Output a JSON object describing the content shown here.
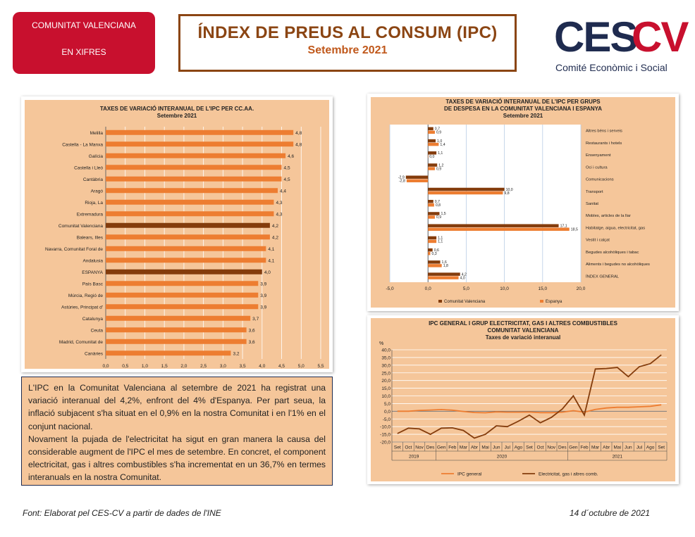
{
  "header": {
    "badge_line1": "COMUNITAT VALENCIANA",
    "badge_line2": "EN XIFRES",
    "title": "ÍNDEX DE PREUS AL CONSUM (IPC)",
    "subtitle": "Setembre 2021",
    "logo_ces": "CES",
    "logo_cv": "CV",
    "logo_sub": "Comité Econòmic i Social"
  },
  "chart_ccaa": {
    "title_line1": "TAXES DE VARIACIÓ INTERANUAL DE L'IPC PER CC.AA.",
    "title_line2": "Setembre 2021"
  },
  "chart_groups": {
    "title_line1": "TAXES DE VARIACIÓ INTERANUAL DE L'IPC PER GRUPS",
    "title_line2": "DE DESPESA EN LA COMUNITAT VALENCIANA I ESPANYA",
    "title_line3": "Setembre 2021",
    "legend_cv": "Comunitat Valenciana",
    "legend_es": "Espanya"
  },
  "chart_line": {
    "title_line1": "IPC GENERAL I GRUP ELECTRICITAT, GAS I ALTRES COMBUSTIBLES",
    "title_line2": "COMUNITAT VALENCIANA",
    "title_line3": "Taxes de variació interanual",
    "ylabel": "%",
    "legend_general": "IPC general",
    "legend_elec": "Electricitat, gas i altres comb."
  },
  "text": {
    "p1": "L'IPC en la Comunitat Valenciana al setembre de 2021 ha registrat una variació interanual del 4,2%, enfront del 4% d'Espanya. Per part seua, la inflació subjacent s'ha situat en el 0,9% en la nostra Comunitat i en l'1% en el conjunt nacional.",
    "p2": "Novament la pujada de l'electricitat ha sigut en gran manera la causa del considerable augment de l'IPC el mes de setembre. En concret, el component electricitat, gas i altres combustibles s'ha incrementat en un 36,7% en termes interanuals en la nostra Comunitat."
  },
  "footer": {
    "source": "Font: Elaborat pel CES-CV a partir de dades de l'INE",
    "date": "14 d´octubre de 2021"
  },
  "colors": {
    "orange": "#ed7d31",
    "brown": "#843c0c",
    "panel_bg": "#f5c69a",
    "red": "#c8102e",
    "navy": "#1f2b4f"
  },
  "chart_data": [
    {
      "type": "bar",
      "orientation": "horizontal",
      "title": "TAXES DE VARIACIÓ INTERANUAL DE L'IPC PER CC.AA. Setembre 2021",
      "categories": [
        "Melilla",
        "Castella - La Manxa",
        "Galícia",
        "Castella i Lleó",
        "Cantàbria",
        "Aragó",
        "Rioja, La",
        "Extremadura",
        "Comunitat Valenciana",
        "Balears, Illes",
        "Navarra, Comunitat Foral de",
        "Andalusia",
        "ESPANYA",
        "País Basc",
        "Múrcia, Regió de",
        "Astúries, Principat d'",
        "Catalunya",
        "Ceuta",
        "Madrid, Comunitat de",
        "Canàries"
      ],
      "values": [
        4.8,
        4.8,
        4.6,
        4.5,
        4.5,
        4.4,
        4.3,
        4.3,
        4.2,
        4.2,
        4.1,
        4.1,
        4.0,
        3.9,
        3.9,
        3.9,
        3.7,
        3.6,
        3.6,
        3.2
      ],
      "labels": [
        "4,8",
        "4,8",
        "4,6",
        "4,5",
        "4,5",
        "4,4",
        "4,3",
        "4,3",
        "4,2",
        "4,2",
        "4,1",
        "4,1",
        "4,0",
        "3,9",
        "3,9",
        "3,9",
        "3,7",
        "3,6",
        "3,6",
        "3,2"
      ],
      "highlight": [
        "Comunitat Valenciana",
        "ESPANYA"
      ],
      "xlim": [
        0,
        5.5
      ],
      "xticks": [
        "0,0",
        "0,5",
        "1,0",
        "1,5",
        "2,0",
        "2,5",
        "3,0",
        "3,5",
        "4,0",
        "4,5",
        "5,0",
        "5,5"
      ]
    },
    {
      "type": "bar",
      "orientation": "horizontal",
      "title": "TAXES DE VARIACIÓ INTERANUAL DE L'IPC PER GRUPS DE DESPESA EN LA COMUNITAT VALENCIANA I ESPANYA Setembre 2021",
      "categories": [
        "Altres béns i serveis",
        "Restaurants i hotels",
        "Ensenyament",
        "Oci i cultura",
        "Comunicacions",
        "Transport",
        "Sanitat",
        "Mobles, articles de la llar",
        "Habitatge, aigua, electricitat, gas",
        "Vestit i calçat",
        "Begudes alcohòliques i tabac",
        "Aliments i begudes no alcohòliques",
        "ÍNDEX GENERAL"
      ],
      "series": [
        {
          "name": "Comunitat Valenciana",
          "values": [
            0.7,
            1.0,
            1.1,
            1.2,
            -2.9,
            10.0,
            0.7,
            1.5,
            17.1,
            1.1,
            0.6,
            1.6,
            4.2
          ],
          "labels": [
            "0,7",
            "1,0",
            "1,1",
            "1,2",
            "-2,9",
            "10,0",
            "0,7",
            "1,5",
            "17,1",
            "1,1",
            "0,6",
            "1,6",
            "4,2"
          ]
        },
        {
          "name": "Espanya",
          "values": [
            0.9,
            1.4,
            0.0,
            0.9,
            -2.8,
            9.8,
            0.8,
            0.9,
            18.5,
            1.1,
            0.3,
            1.8,
            4.0
          ],
          "labels": [
            "0,9",
            "1,4",
            "0,0",
            "0,9",
            "-2,8",
            "9,8",
            "0,8",
            "0,9",
            "18,5",
            "1,1",
            "0,3",
            "1,8",
            "4,0"
          ]
        }
      ],
      "xlim": [
        -5,
        20
      ],
      "xticks": [
        "-5,0",
        "0,0",
        "5,0",
        "10,0",
        "15,0",
        "20,0"
      ]
    },
    {
      "type": "line",
      "title": "IPC GENERAL I GRUP ELECTRICITAT, GAS I ALTRES COMBUSTIBLES COMUNITAT VALENCIANA Taxes de variació interanual",
      "ylabel": "%",
      "x": [
        "Set",
        "Oct",
        "Nov",
        "Des",
        "Gen",
        "Feb",
        "Mar",
        "Abr",
        "Mai",
        "Jun",
        "Jul",
        "Ago",
        "Set",
        "Oct",
        "Nov",
        "Des",
        "Gen",
        "Feb",
        "Mar",
        "Abr",
        "Mai",
        "Jun",
        "Jul",
        "Ago",
        "Set"
      ],
      "year_groups": [
        {
          "label": "2019",
          "start": 0,
          "end": 3
        },
        {
          "label": "2020",
          "start": 4,
          "end": 15
        },
        {
          "label": "2021",
          "start": 16,
          "end": 24
        }
      ],
      "series": [
        {
          "name": "IPC general",
          "values": [
            0.0,
            0.0,
            0.5,
            0.8,
            1.1,
            0.7,
            -0.1,
            -0.8,
            -1.0,
            -0.4,
            -0.6,
            -0.6,
            -0.5,
            -0.9,
            -0.9,
            -0.6,
            0.4,
            -0.6,
            1.2,
            2.1,
            2.6,
            2.6,
            2.9,
            3.2,
            4.2
          ]
        },
        {
          "name": "Electricitat, gas i altres comb.",
          "values": [
            -14.5,
            -11.0,
            -11.5,
            -15.0,
            -11.0,
            -10.8,
            -12.5,
            -17.5,
            -15.0,
            -9.5,
            -10.0,
            -6.5,
            -2.5,
            -7.5,
            -4.0,
            1.5,
            10.0,
            -2.5,
            27.5,
            27.8,
            28.5,
            22.5,
            29.0,
            31.0,
            36.7
          ]
        }
      ],
      "ylim": [
        -20,
        40
      ],
      "yticks": [
        "-20,0",
        "-15,0",
        "-10,0",
        "-5,0",
        "0,0",
        "5,0",
        "10,0",
        "15,0",
        "20,0",
        "25,0",
        "30,0",
        "35,0",
        "40,0"
      ]
    }
  ]
}
